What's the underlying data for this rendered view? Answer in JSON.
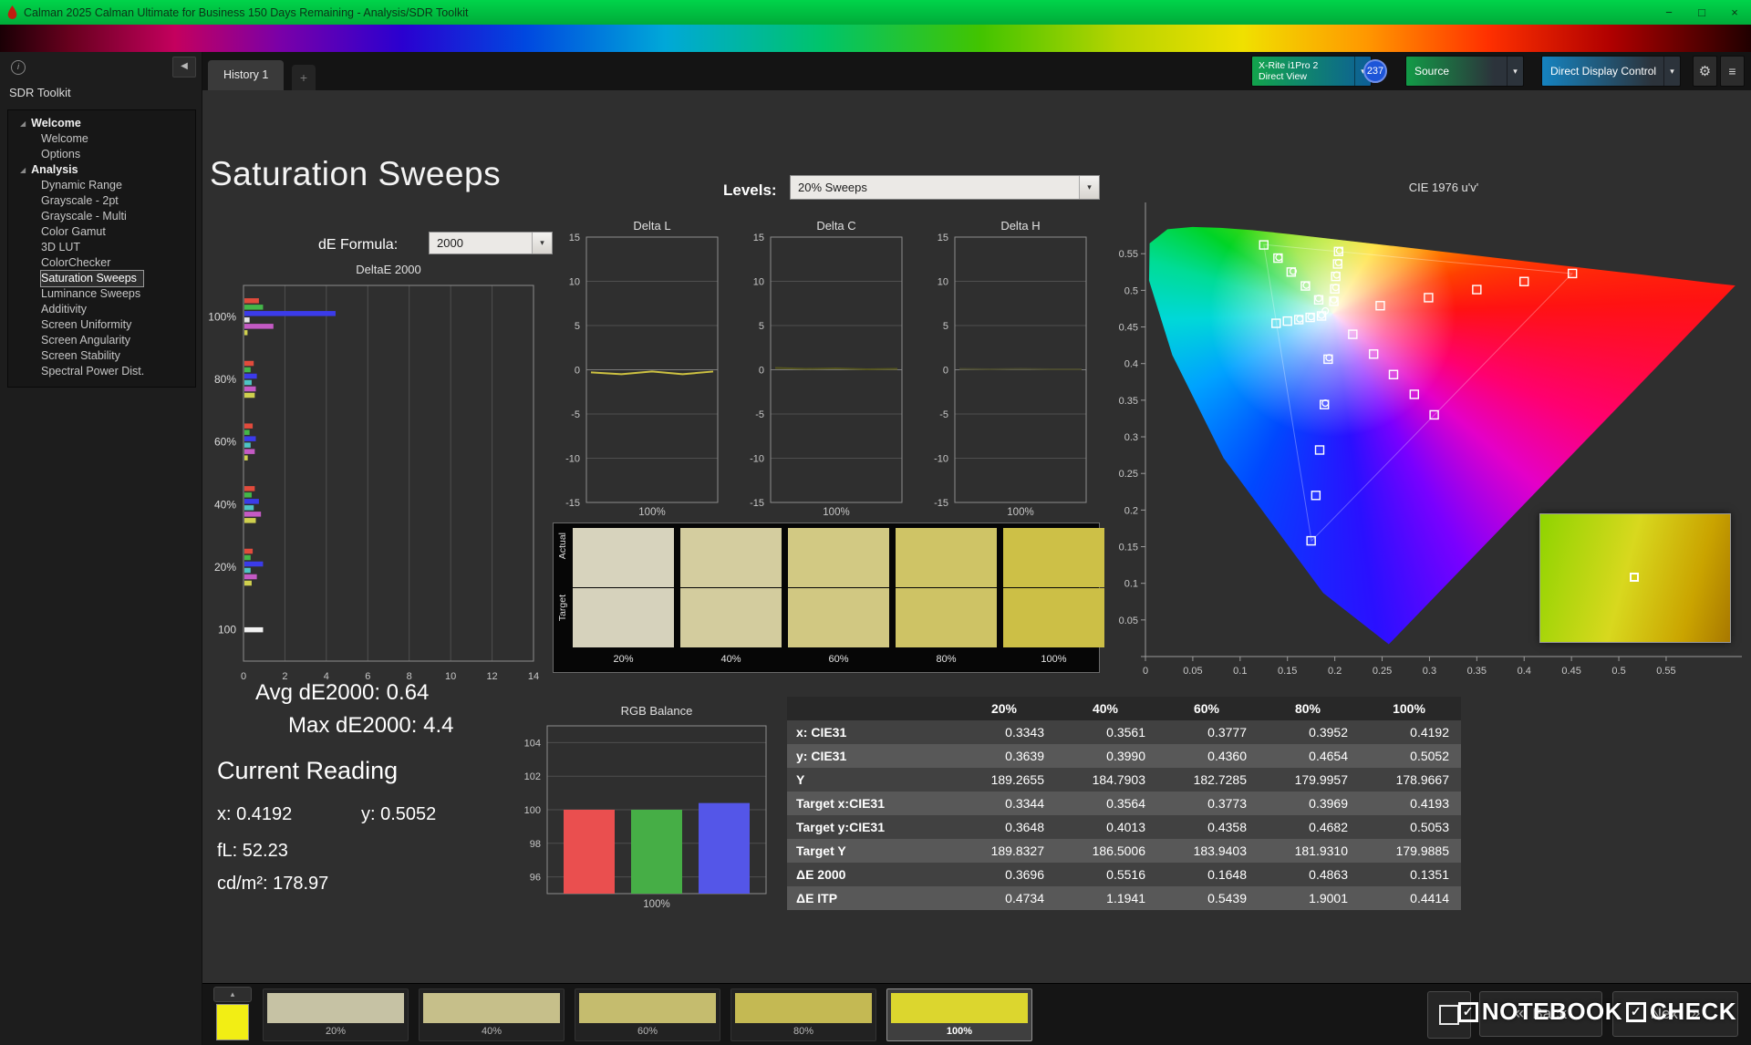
{
  "window": {
    "title": "Calman 2025 Calman Ultimate for Business 150 Days Remaining  - Analysis/SDR Toolkit"
  },
  "icons": {
    "dropdown": "▾",
    "collapse": "◀",
    "twist": "◢",
    "gear": "⚙",
    "menu": "≡",
    "minimize": "−",
    "maximize": "□",
    "close": "×",
    "up": "▴",
    "back": "«",
    "next": "»",
    "check": "✓",
    "plus": "+",
    "info": "i"
  },
  "logo": {
    "label": "calman"
  },
  "sidebar": {
    "title": "SDR Toolkit",
    "groups": [
      {
        "label": "Welcome",
        "items": [
          "Welcome",
          "Options"
        ]
      },
      {
        "label": "Analysis",
        "items": [
          "Dynamic Range",
          "Grayscale - 2pt",
          "Grayscale - Multi",
          "Color Gamut",
          "3D LUT",
          "ColorChecker",
          "Saturation Sweeps",
          "Luminance Sweeps",
          "Additivity",
          "Screen Uniformity",
          "Screen Angularity",
          "Screen Stability",
          "Spectral Power Dist."
        ]
      }
    ],
    "selected_item": "Saturation Sweeps"
  },
  "tabs": {
    "active": "History 1"
  },
  "toolbar": {
    "meter_line1": "X-Rite i1Pro 2",
    "meter_line2": "Direct View",
    "meter_badge": "237",
    "source_label": "Source",
    "ddc_label": "Direct Display Control"
  },
  "page": {
    "title": "Saturation Sweeps",
    "levels_label": "Levels:",
    "levels_value": "20% Sweeps",
    "de_formula_label": "dE Formula:",
    "de_formula_value": "2000"
  },
  "stats": {
    "avg": "Avg dE2000: 0.64",
    "max": "Max dE2000: 4.4",
    "current_reading_label": "Current Reading",
    "x": "x: 0.4192",
    "y": "y: 0.5052",
    "fl": "fL: 52.23",
    "cdm2": "cd/m²: 178.97"
  },
  "swatch_panel": {
    "row_labels": [
      "Actual",
      "Target"
    ],
    "labels": [
      "20%",
      "40%",
      "60%",
      "80%",
      "100%"
    ],
    "actual_colors": [
      "#d7d3bd",
      "#d4cd9f",
      "#d2c983",
      "#cfc466",
      "#cdc047"
    ],
    "target_colors": [
      "#d6d2bc",
      "#d3cc9e",
      "#d1c882",
      "#cec365",
      "#ccbf46"
    ]
  },
  "table": {
    "headers": [
      "20%",
      "40%",
      "60%",
      "80%",
      "100%"
    ],
    "rows": [
      {
        "label": "x: CIE31",
        "values": [
          "0.3343",
          "0.3561",
          "0.3777",
          "0.3952",
          "0.4192"
        ]
      },
      {
        "label": "y: CIE31",
        "values": [
          "0.3639",
          "0.3990",
          "0.4360",
          "0.4654",
          "0.5052"
        ]
      },
      {
        "label": "Y",
        "values": [
          "189.2655",
          "184.7903",
          "182.7285",
          "179.9957",
          "178.9667"
        ]
      },
      {
        "label": "Target x:CIE31",
        "values": [
          "0.3344",
          "0.3564",
          "0.3773",
          "0.3969",
          "0.4193"
        ]
      },
      {
        "label": "Target y:CIE31",
        "values": [
          "0.3648",
          "0.4013",
          "0.4358",
          "0.4682",
          "0.5053"
        ]
      },
      {
        "label": "Target Y",
        "values": [
          "189.8327",
          "186.5006",
          "183.9403",
          "181.9310",
          "179.9885"
        ]
      },
      {
        "label": "ΔE 2000",
        "values": [
          "0.3696",
          "0.5516",
          "0.1648",
          "0.4863",
          "0.1351"
        ]
      },
      {
        "label": "ΔE ITP",
        "values": [
          "0.4734",
          "1.1941",
          "0.5439",
          "1.9001",
          "0.4414"
        ]
      }
    ]
  },
  "bottom": {
    "mini_swatch_color": "#f2ee14",
    "swatches": [
      {
        "label": "20%",
        "color": "#c6c2a4"
      },
      {
        "label": "40%",
        "color": "#c6bf8a"
      },
      {
        "label": "60%",
        "color": "#c5bc6e"
      },
      {
        "label": "80%",
        "color": "#c4b953"
      },
      {
        "label": "100%",
        "color": "#dcd62e"
      }
    ],
    "selected_index": 4,
    "back_label": "Back",
    "next_label": "Next",
    "watermark_part1": "NOTEBOOK",
    "watermark_part2": "CHECK"
  },
  "chart_data": [
    {
      "id": "deltae2000",
      "type": "bar",
      "orientation": "horizontal",
      "title": "DeltaE 2000",
      "xlim": [
        0,
        14
      ],
      "xtick_values": [
        0,
        2,
        4,
        6,
        8,
        10,
        12,
        14
      ],
      "xtick_labels": [
        "0",
        "2",
        "4",
        "6",
        "8",
        "10",
        "12",
        "14"
      ],
      "groups": [
        {
          "label": "100%",
          "bars": [
            {
              "color": "#e14b3c",
              "value": 0.7
            },
            {
              "color": "#44b649",
              "value": 0.9
            },
            {
              "color": "#3b3bea",
              "value": 4.4
            },
            {
              "color": "#e6e6e6",
              "value": 0.25
            },
            {
              "color": "#c45ac4",
              "value": 1.4
            },
            {
              "color": "#cfd04e",
              "value": 0.15
            }
          ]
        },
        {
          "label": "80%",
          "bars": [
            {
              "color": "#e14b3c",
              "value": 0.45
            },
            {
              "color": "#44b649",
              "value": 0.3
            },
            {
              "color": "#3b3bea",
              "value": 0.6
            },
            {
              "color": "#4ec4c4",
              "value": 0.35
            },
            {
              "color": "#c45ac4",
              "value": 0.55
            },
            {
              "color": "#cfd04e",
              "value": 0.5
            }
          ]
        },
        {
          "label": "60%",
          "bars": [
            {
              "color": "#e14b3c",
              "value": 0.4
            },
            {
              "color": "#44b649",
              "value": 0.25
            },
            {
              "color": "#3b3bea",
              "value": 0.55
            },
            {
              "color": "#4ec4c4",
              "value": 0.3
            },
            {
              "color": "#c45ac4",
              "value": 0.5
            },
            {
              "color": "#cfd04e",
              "value": 0.16
            }
          ]
        },
        {
          "label": "40%",
          "bars": [
            {
              "color": "#e14b3c",
              "value": 0.5
            },
            {
              "color": "#44b649",
              "value": 0.35
            },
            {
              "color": "#3b3bea",
              "value": 0.7
            },
            {
              "color": "#4ec4c4",
              "value": 0.45
            },
            {
              "color": "#c45ac4",
              "value": 0.8
            },
            {
              "color": "#cfd04e",
              "value": 0.55
            }
          ]
        },
        {
          "label": "20%",
          "bars": [
            {
              "color": "#e14b3c",
              "value": 0.4
            },
            {
              "color": "#44b649",
              "value": 0.3
            },
            {
              "color": "#3b3bea",
              "value": 0.9
            },
            {
              "color": "#4ec4c4",
              "value": 0.3
            },
            {
              "color": "#c45ac4",
              "value": 0.6
            },
            {
              "color": "#cfd04e",
              "value": 0.35
            }
          ]
        },
        {
          "label": "100",
          "bars": [
            {
              "color": "#f2f2f2",
              "value": 0.9
            }
          ]
        }
      ]
    },
    {
      "id": "delta_l",
      "type": "line",
      "title": "Delta L",
      "xlabel": "100%",
      "ylim": [
        -15,
        15
      ],
      "ytick_values": [
        15,
        10,
        5,
        0,
        -5,
        -10,
        -15
      ],
      "ytick_labels": [
        "15",
        "10",
        "5",
        "0",
        "-5",
        "-10",
        "-15"
      ],
      "series": [
        {
          "name": "yellow sweep",
          "color": "#cdc141",
          "x": [
            20,
            40,
            60,
            80,
            100
          ],
          "y": [
            -0.3,
            -0.5,
            -0.2,
            -0.5,
            -0.2
          ]
        }
      ]
    },
    {
      "id": "delta_c",
      "type": "line",
      "title": "Delta C",
      "xlabel": "100%",
      "ylim": [
        -15,
        15
      ],
      "ytick_values": [
        15,
        10,
        5,
        0,
        -5,
        -10,
        -15
      ],
      "ytick_labels": [
        "15",
        "10",
        "5",
        "0",
        "-5",
        "-10",
        "-15"
      ],
      "series": [
        {
          "name": "yellow sweep",
          "color": "#55551f",
          "x": [
            20,
            40,
            60,
            80,
            100
          ],
          "y": [
            0.2,
            0.1,
            0.15,
            0.05,
            0.1
          ]
        }
      ]
    },
    {
      "id": "delta_h",
      "type": "line",
      "title": "Delta H",
      "xlabel": "100%",
      "ylim": [
        -15,
        15
      ],
      "ytick_values": [
        15,
        10,
        5,
        0,
        -5,
        -10,
        -15
      ],
      "ytick_labels": [
        "15",
        "10",
        "5",
        "0",
        "-5",
        "-10",
        "-15"
      ],
      "series": [
        {
          "name": "yellow sweep",
          "color": "#4a4a30",
          "x": [
            20,
            40,
            60,
            80,
            100
          ],
          "y": [
            0.1,
            0.05,
            0.1,
            0.05,
            0.05
          ]
        }
      ]
    },
    {
      "id": "rgb_balance",
      "type": "bar",
      "title": "RGB Balance",
      "xlabel": "100%",
      "categories": [
        "Red",
        "Green",
        "Blue"
      ],
      "values": [
        100,
        100,
        100.4
      ],
      "colors": [
        "#ea4f4f",
        "#46ae46",
        "#5456e8"
      ],
      "ylim": [
        95,
        105
      ],
      "ytick_values": [
        96,
        98,
        100,
        102,
        104
      ],
      "ytick_labels": [
        "96",
        "98",
        "100",
        "102",
        "104"
      ]
    },
    {
      "id": "cie1976",
      "type": "scatter",
      "title": "CIE 1976 u'v'",
      "xlim": [
        0,
        0.63
      ],
      "ylim": [
        0,
        0.62
      ],
      "tick_values": [
        0,
        0.05,
        0.1,
        0.15,
        0.2,
        0.25,
        0.3,
        0.35,
        0.4,
        0.45,
        0.5,
        0.55
      ],
      "tick_labels": [
        "0",
        "0.05",
        "0.1",
        "0.15",
        "0.2",
        "0.25",
        "0.3",
        "0.35",
        "0.4",
        "0.45",
        "0.5",
        "0.55"
      ],
      "white_point": [
        0.198,
        0.468
      ],
      "gamut_triangle": [
        [
          0.4507,
          0.5229
        ],
        [
          0.125,
          0.5625
        ],
        [
          0.1754,
          0.1579
        ]
      ],
      "target_squares": [
        [
          0.248,
          0.479
        ],
        [
          0.299,
          0.49
        ],
        [
          0.35,
          0.501
        ],
        [
          0.4,
          0.512
        ],
        [
          0.451,
          0.523
        ],
        [
          0.183,
          0.487
        ],
        [
          0.169,
          0.506
        ],
        [
          0.154,
          0.525
        ],
        [
          0.14,
          0.544
        ],
        [
          0.125,
          0.562
        ],
        [
          0.193,
          0.406
        ],
        [
          0.189,
          0.344
        ],
        [
          0.184,
          0.282
        ],
        [
          0.18,
          0.22
        ],
        [
          0.175,
          0.158
        ],
        [
          0.186,
          0.465
        ],
        [
          0.174,
          0.463
        ],
        [
          0.162,
          0.46
        ],
        [
          0.15,
          0.458
        ],
        [
          0.138,
          0.455
        ],
        [
          0.219,
          0.44
        ],
        [
          0.241,
          0.413
        ],
        [
          0.262,
          0.385
        ],
        [
          0.284,
          0.358
        ],
        [
          0.305,
          0.33
        ],
        [
          0.199,
          0.485
        ],
        [
          0.2,
          0.502
        ],
        [
          0.201,
          0.519
        ],
        [
          0.203,
          0.536
        ],
        [
          0.204,
          0.553
        ]
      ],
      "measured_points": [
        [
          0.199,
          0.487
        ],
        [
          0.201,
          0.504
        ],
        [
          0.202,
          0.521
        ],
        [
          0.204,
          0.538
        ],
        [
          0.205,
          0.554
        ],
        [
          0.19,
          0.472
        ],
        [
          0.183,
          0.489
        ],
        [
          0.17,
          0.507
        ],
        [
          0.156,
          0.526
        ],
        [
          0.141,
          0.545
        ],
        [
          0.186,
          0.466
        ],
        [
          0.175,
          0.464
        ],
        [
          0.163,
          0.461
        ],
        [
          0.194,
          0.408
        ],
        [
          0.19,
          0.346
        ]
      ]
    }
  ]
}
